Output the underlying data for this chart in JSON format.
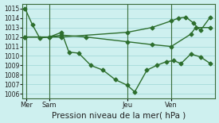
{
  "bg_color": "#cef0ef",
  "grid_color": "#aadddd",
  "line_color": "#2d6e2d",
  "xlabel_text": "Pression niveau de la mer( hPa )",
  "ylim": [
    1005.5,
    1015.5
  ],
  "yticks": [
    1006,
    1007,
    1008,
    1009,
    1010,
    1011,
    1012,
    1013,
    1014,
    1015
  ],
  "series1_x": [
    0,
    0.3,
    0.6,
    1.0,
    1.5,
    1.8,
    2.2,
    2.7,
    3.2,
    3.7,
    4.2,
    4.5,
    5.0,
    5.4,
    5.8,
    6.1,
    6.4,
    6.8,
    7.2,
    7.6
  ],
  "series1_y": [
    1015.0,
    1013.3,
    1011.9,
    1012.0,
    1012.5,
    1010.4,
    1010.3,
    1009.0,
    1008.5,
    1007.5,
    1006.9,
    1006.2,
    1008.5,
    1009.0,
    1009.4,
    1009.5,
    1009.2,
    1010.2,
    1009.9,
    1009.2
  ],
  "series2_x": [
    0,
    1.0,
    1.5,
    2.5,
    4.2,
    5.2,
    6.0,
    6.8,
    7.0,
    7.6
  ],
  "series2_y": [
    1012.0,
    1012.0,
    1012.2,
    1012.0,
    1011.5,
    1011.2,
    1011.0,
    1012.3,
    1013.0,
    1013.0
  ],
  "series3_x": [
    0,
    1.5,
    4.2,
    5.2,
    6.0,
    6.3,
    6.6,
    6.9,
    7.2,
    7.6
  ],
  "series3_y": [
    1012.0,
    1012.0,
    1012.5,
    1013.0,
    1013.7,
    1014.0,
    1014.1,
    1013.5,
    1012.7,
    1014.1
  ],
  "day_positions": [
    0.05,
    1.0,
    4.2,
    6.0
  ],
  "day_labels": [
    "Mer",
    "Sam",
    "Jeu",
    "Ven"
  ],
  "xmin": -0.1,
  "xmax": 7.8,
  "tick_fontsize": 5.5,
  "xlabel_fontsize": 7.5
}
